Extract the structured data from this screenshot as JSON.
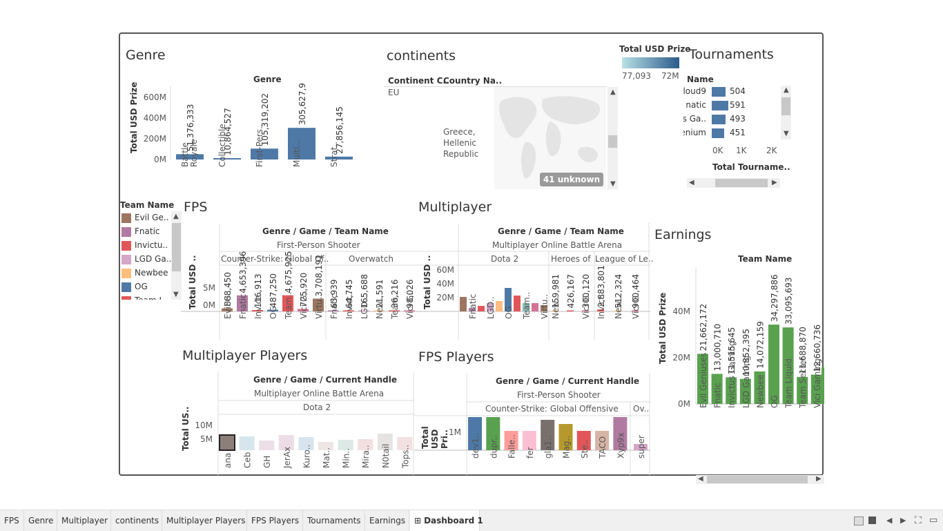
{
  "genre_panel": {
    "title": "Genre",
    "header": "Genre",
    "ylabel": "Total USD Prize",
    "yticks": [
      "600M",
      "400M",
      "200M",
      "0M"
    ],
    "bars": [
      {
        "label": "Battle Royale",
        "value_label": "51,376,333",
        "value": 51376333
      },
      {
        "label": "Collectible...",
        "value_label": "10,864,527",
        "value": 10864527
      },
      {
        "label": "First-Pers..",
        "value_label": "105,319,202",
        "value": 105319202
      },
      {
        "label": "Multi...",
        "value_label": "305,627,997",
        "value": 305627997
      },
      {
        "label": "Strat..",
        "value_label": "27,856,145",
        "value": 27856145
      }
    ],
    "bar_color": "#4e79a7"
  },
  "continents_panel": {
    "title": "continents",
    "col1": "Continent C..",
    "col2": "Country Na..",
    "row_continent": "EU",
    "row_country": "Greece, Hellenic Republic",
    "unknown_badge": "41 unknown"
  },
  "color_legend": {
    "title": "Total USD Prize",
    "min": "77,093",
    "max": "72M"
  },
  "tournaments_panel": {
    "title": "Tournaments",
    "col": "Name",
    "rows": [
      {
        "name": "loud9",
        "value": 504
      },
      {
        "name": "natic",
        "value": 591
      },
      {
        "name": "s Ga..",
        "value": 493
      },
      {
        "name": "enium",
        "value": 451
      }
    ],
    "xticks": [
      "0K",
      "1K",
      "2K"
    ],
    "xlabel": "Total Tourname.."
  },
  "team_legend": {
    "title": "Team Name",
    "items": [
      {
        "name": "Evil Ge..",
        "color": "#9c7660"
      },
      {
        "name": "Fnatic",
        "color": "#b07aa1"
      },
      {
        "name": "Invictu..",
        "color": "#e15759"
      },
      {
        "name": "LGD Ga..",
        "color": "#d4a6c8"
      },
      {
        "name": "Newbee",
        "color": "#ffbe7d"
      },
      {
        "name": "OG",
        "color": "#4e79a7"
      },
      {
        "name": "Team L..",
        "color": "#e15759"
      }
    ]
  },
  "fps_panel": {
    "title": "FPS",
    "header": "Genre / Game / Team Name",
    "genre": "First-Person Shooter",
    "games": [
      "Counter-Strike: Global Of..",
      "Overwatch"
    ],
    "ylabel": "Total USD ..",
    "yticks": [
      "5M",
      "0M"
    ],
    "cs_bars": [
      {
        "label": "Evil G..",
        "value_label": "888,450",
        "color": "#9c7660"
      },
      {
        "label": "Fnatic",
        "value_label": "4,653,396",
        "color": "#b07aa1"
      },
      {
        "label": "Invict..",
        "value_label": "116,913",
        "color": "#e15759"
      },
      {
        "label": "OG",
        "value_label": "487,250",
        "color": "#4e79a7"
      },
      {
        "label": "Team..",
        "value_label": "4,675,925",
        "color": "#e15759"
      },
      {
        "label": "Vici G..",
        "value_label": "725,920",
        "color": "#d37295"
      },
      {
        "label": "Virtu..",
        "value_label": "3,708,191",
        "color": "#9c7660"
      }
    ],
    "ow_bars": [
      {
        "label": "Fnatic",
        "value_label": "63,939",
        "color": "#b07aa1"
      },
      {
        "label": "Invict..",
        "value_label": "64,745",
        "color": "#e15759"
      },
      {
        "label": "LGD..",
        "value_label": "165,688",
        "color": "#d4a6c8"
      },
      {
        "label": "New..",
        "value_label": "21,591",
        "color": "#ffbe7d"
      },
      {
        "label": "Team..",
        "value_label": "36,216",
        "color": "#e15759"
      },
      {
        "label": "Vici G..",
        "value_label": "98,026",
        "color": "#d37295"
      }
    ]
  },
  "multiplayer_panel": {
    "title": "Multiplayer",
    "header": "Genre / Game / Team Name",
    "genre": "Multiplayer Online Battle Arena",
    "games": [
      "Dota 2",
      "Heroes of ..",
      "League of Le.."
    ],
    "ylabel": "Total USD ..",
    "yticks": [
      "60M",
      "40M",
      "20M"
    ],
    "dota_bars": [
      {
        "label": "",
        "value": 21,
        "color": "#9c7660"
      },
      {
        "label": "Fnatic",
        "value": 5,
        "color": "#b07aa1"
      },
      {
        "label": "",
        "value": 8,
        "color": "#e15759"
      },
      {
        "label": "LGD..",
        "value": 12,
        "color": "#d4a6c8"
      },
      {
        "label": "",
        "value": 15,
        "color": "#ffbe7d"
      },
      {
        "label": "OG",
        "value": 34,
        "color": "#4e79a7"
      },
      {
        "label": "",
        "value": 23,
        "color": "#e15759"
      },
      {
        "label": "Team..",
        "value": 12,
        "color": "#86bcb6"
      },
      {
        "label": "",
        "value": 12,
        "color": "#d37295"
      },
      {
        "label": "Virtu..",
        "value": 9,
        "color": "#9c7660"
      }
    ],
    "hots_bars": [
      {
        "label": "New..",
        "value_label": "159,981",
        "color": "#ffbe7d"
      },
      {
        "label": "",
        "value_label": "426,167",
        "color": "#e15759"
      },
      {
        "label": "Vici G..",
        "value_label": "300,120",
        "color": "#d37295"
      }
    ],
    "lol_bars": [
      {
        "label": "Invict..",
        "value_label": "2,883,801",
        "color": "#e15759"
      },
      {
        "label": "New..",
        "value_label": "512,324",
        "color": "#ffbe7d"
      },
      {
        "label": "Vici G..",
        "value_label": "900,464",
        "color": "#d37295"
      }
    ]
  },
  "earnings_panel": {
    "title": "Earnings",
    "header": "Team Name",
    "ylabel": "Total USD Prize",
    "yticks": [
      "40M",
      "20M",
      "0M"
    ],
    "bars": [
      {
        "label": "Evil Geniuses",
        "value_label": "21,662,172",
        "value": 21662172
      },
      {
        "label": "Fnatic",
        "value_label": "13,000,710",
        "value": 13000710
      },
      {
        "label": "Invictus Gaming",
        "value_label": "11,515,645",
        "value": 11515645
      },
      {
        "label": "LGD Gaming",
        "value_label": "10,852,395",
        "value": 10852395
      },
      {
        "label": "Newbee",
        "value_label": "14,072,159",
        "value": 14072159
      },
      {
        "label": "OG",
        "value_label": "34,297,886",
        "value": 34297886
      },
      {
        "label": "Team Liquid",
        "value_label": "33,095,693",
        "value": 33095693
      },
      {
        "label": "Team Secret",
        "value_label": "11,688,870",
        "value": 11688870
      },
      {
        "label": "Vici Gaming",
        "value_label": "12,660,736",
        "value": 12660736
      }
    ],
    "bar_color": "#59a14f"
  },
  "mp_players_panel": {
    "title": "Multiplayer Players",
    "header": "Genre / Game / Current Handle",
    "genre": "Multiplayer Online Battle Arena",
    "game": "Dota 2",
    "ylabel": "Total US..",
    "yticks": [
      "10M",
      "5M"
    ],
    "bars": [
      {
        "label": "ana",
        "color": "#8c7f7a"
      },
      {
        "label": "Ceb",
        "color": "#d6e6ec"
      },
      {
        "label": "GH",
        "color": "#ecdfe8"
      },
      {
        "label": "JerAx",
        "color": "#ecdce6"
      },
      {
        "label": "Kuro..",
        "color": "#d7e4ee"
      },
      {
        "label": "Mat..",
        "color": "#ede6e4"
      },
      {
        "label": "Min..",
        "color": "#dde9e6"
      },
      {
        "label": "Mira..",
        "color": "#f2dfe0"
      },
      {
        "label": "N0tail",
        "color": "#e6e3e3"
      },
      {
        "label": "Tops..",
        "color": "#f3e0e1"
      }
    ]
  },
  "fps_players_panel": {
    "title": "FPS Players",
    "header": "Genre / Game / Current Handle",
    "genre": "First-Person Shooter",
    "games": [
      "Counter-Strike: Global Offensive",
      "Ov.."
    ],
    "ylabel": "Total USD Pri..",
    "yticks": [
      "1M"
    ],
    "bars": [
      {
        "label": "dev1..",
        "color": "#4e79a7"
      },
      {
        "label": "dupr..",
        "color": "#59a14f"
      },
      {
        "label": "Falle..",
        "color": "#ff9d9a"
      },
      {
        "label": "fer",
        "color": "#fabfd2"
      },
      {
        "label": "gla1..",
        "color": "#79706e"
      },
      {
        "label": "Mag..",
        "color": "#b6992d"
      },
      {
        "label": "Ste..",
        "color": "#e15759"
      },
      {
        "label": "TACO",
        "color": "#d7b5a6"
      },
      {
        "label": "Xyp9x",
        "color": "#b07aa1"
      }
    ],
    "ow_bars": [
      {
        "label": "super",
        "color": "#d4a6c8"
      }
    ]
  },
  "tabs": [
    "FPS",
    "Genre",
    "Multiplayer",
    "continents",
    "Multiplayer Players",
    "FPS Players",
    "Tournaments",
    "Earnings",
    "Dashboard 1"
  ],
  "active_tab": "Dashboard 1"
}
